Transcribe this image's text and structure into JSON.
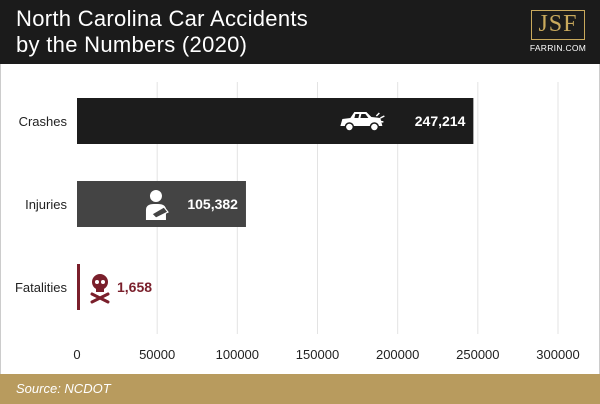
{
  "header": {
    "title_line1": "North Carolina Car Accidents",
    "title_line2": "by the Numbers (2020)"
  },
  "logo": {
    "mark": "JSF",
    "sub": "FARRIN.COM"
  },
  "footer": {
    "source": "Source: NCDOT"
  },
  "colors": {
    "header_bg": "#1b1b1b",
    "footer_bg": "#b89b5e",
    "logo_gold": "#c9a95c",
    "crashes_bar": "#1c1c1c",
    "injuries_bar": "#444444",
    "fatalities_bar": "#7a1f2b"
  },
  "chart_data": {
    "type": "bar",
    "orientation": "horizontal",
    "categories": [
      "Crashes",
      "Injuries",
      "Fatalities"
    ],
    "values": [
      247214,
      105382,
      1658
    ],
    "value_labels": [
      "247,214",
      "105,382",
      "1,658"
    ],
    "icons": [
      "car-crash-icon",
      "injured-person-icon",
      "skull-crossbones-icon"
    ],
    "xlim": [
      0,
      300000
    ],
    "xticks": [
      0,
      50000,
      100000,
      150000,
      200000,
      250000,
      300000
    ],
    "xtick_labels": [
      "0",
      "50000",
      "100000",
      "150000",
      "200000",
      "250000",
      "300000"
    ],
    "grid": "vertical",
    "legend": "none"
  }
}
